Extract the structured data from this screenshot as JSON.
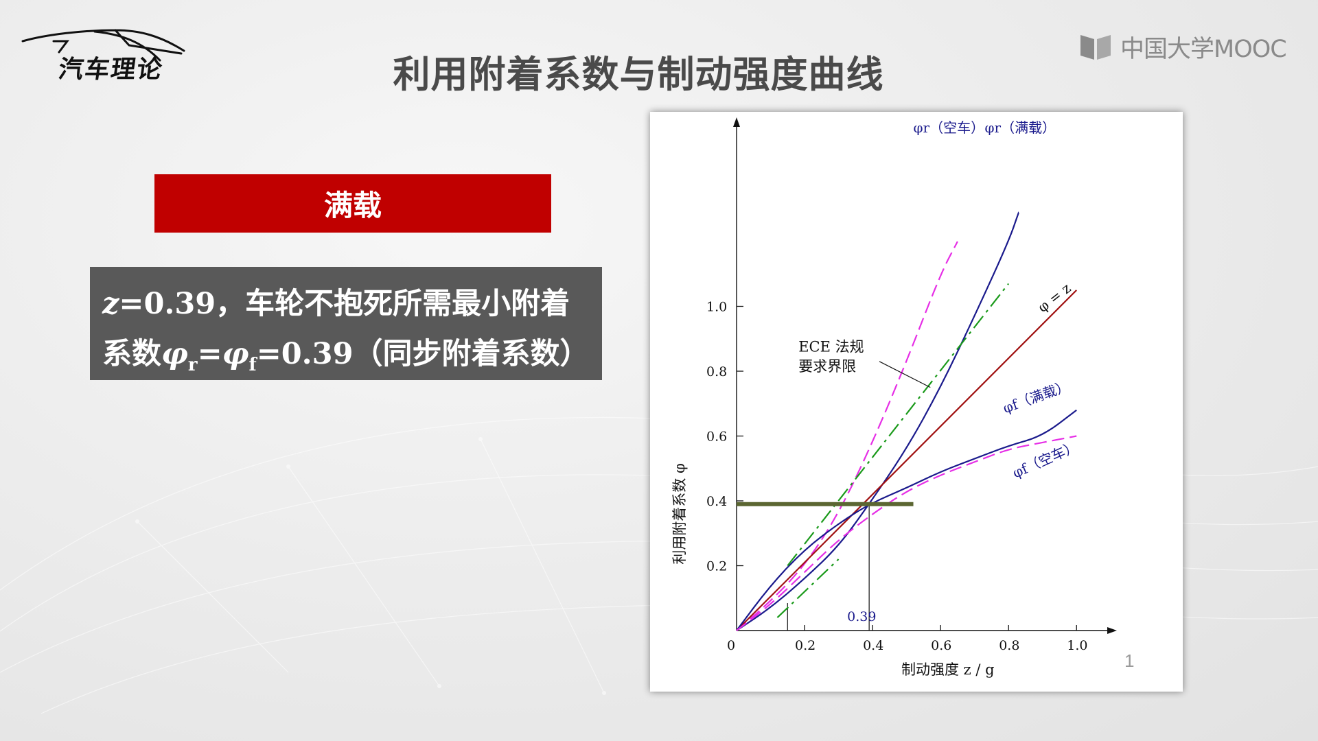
{
  "logo": {
    "text": "汽车理论"
  },
  "header": {
    "title": "利用附着系数与制动强度曲线",
    "brand": "中国大学MOOC"
  },
  "label_box": {
    "text": "满载"
  },
  "note": {
    "line1_var": "z",
    "line1_rest": "=0.39，车轮不抱死所需最小附着",
    "line2_a": "系数",
    "line2_phi1": "φ",
    "line2_sub1": "r",
    "line2_eq": "=",
    "line2_phi2": "φ",
    "line2_sub2": "f",
    "line2_rest": "=0.39（同步附着系数）"
  },
  "page_number": "1",
  "colors": {
    "accent_red": "#c00000",
    "note_bg": "#595959",
    "full_load": "#1a1a8c",
    "empty_load": "#e62ee6",
    "ece_limit": "#1a9a1a",
    "phi_eq_z": "#a01010",
    "marker": "#5b6632"
  },
  "chart_data": {
    "type": "line",
    "xlabel": "制动强度 z / g",
    "ylabel": "利用附着系数 φ",
    "xlim": [
      0,
      1.05
    ],
    "ylim": [
      0,
      1.2
    ],
    "x_ticks": [
      "0",
      "0.2",
      "0.4",
      "0.6",
      "0.8",
      "1.0"
    ],
    "y_ticks": [
      "0.2",
      "0.4",
      "0.6",
      "0.8",
      "1.0"
    ],
    "grid": false,
    "series": [
      {
        "name": "φr（空车）",
        "style": "dashed",
        "color": "#e62ee6",
        "x": [
          0,
          0.1,
          0.2,
          0.3,
          0.4,
          0.5,
          0.6,
          0.65
        ],
        "y": [
          0,
          0.09,
          0.2,
          0.36,
          0.58,
          0.83,
          1.1,
          1.2
        ]
      },
      {
        "name": "φr（满载）",
        "style": "solid",
        "color": "#1a1a8c",
        "x": [
          0,
          0.1,
          0.2,
          0.3,
          0.39,
          0.5,
          0.6,
          0.7,
          0.8,
          0.83
        ],
        "y": [
          0,
          0.07,
          0.16,
          0.26,
          0.39,
          0.56,
          0.75,
          0.97,
          1.2,
          1.29
        ]
      },
      {
        "name": "φ = z",
        "style": "solid",
        "color": "#a01010",
        "x": [
          0,
          1.0
        ],
        "y": [
          0,
          1.05
        ]
      },
      {
        "name": "φf（满载）",
        "style": "solid",
        "color": "#1a1a8c",
        "x": [
          0,
          0.1,
          0.2,
          0.3,
          0.39,
          0.5,
          0.6,
          0.7,
          0.8,
          0.9,
          1.0
        ],
        "y": [
          0,
          0.14,
          0.25,
          0.33,
          0.39,
          0.44,
          0.49,
          0.53,
          0.57,
          0.6,
          0.68
        ]
      },
      {
        "name": "φf（空车）",
        "style": "dashed",
        "color": "#e62ee6",
        "x": [
          0,
          0.1,
          0.2,
          0.3,
          0.4,
          0.5,
          0.6,
          0.7,
          0.8,
          0.9,
          1.0
        ],
        "y": [
          0,
          0.08,
          0.18,
          0.28,
          0.36,
          0.43,
          0.48,
          0.52,
          0.56,
          0.58,
          0.6
        ]
      },
      {
        "name": "ECE 法规要求界限",
        "style": "dashdot",
        "color": "#1a9a1a",
        "x": [
          0.15,
          0.8
        ],
        "y": [
          0.2,
          1.07
        ]
      },
      {
        "name": "ECE 法规要求界限",
        "style": "dashdot",
        "color": "#1a9a1a",
        "x": [
          0.12,
          0.3
        ],
        "y": [
          0.04,
          0.22
        ]
      }
    ],
    "annotations": [
      {
        "text": "ECE 法规",
        "x": 0.38,
        "y": 0.86
      },
      {
        "text": "要求界限",
        "x": 0.38,
        "y": 0.8
      },
      {
        "text": "0.39",
        "x": 0.39,
        "y": 0.03
      }
    ],
    "highlight": {
      "y": 0.39,
      "x_from": 0,
      "x_to": 0.52
    },
    "vertical_marks": [
      0.15,
      0.39
    ]
  }
}
